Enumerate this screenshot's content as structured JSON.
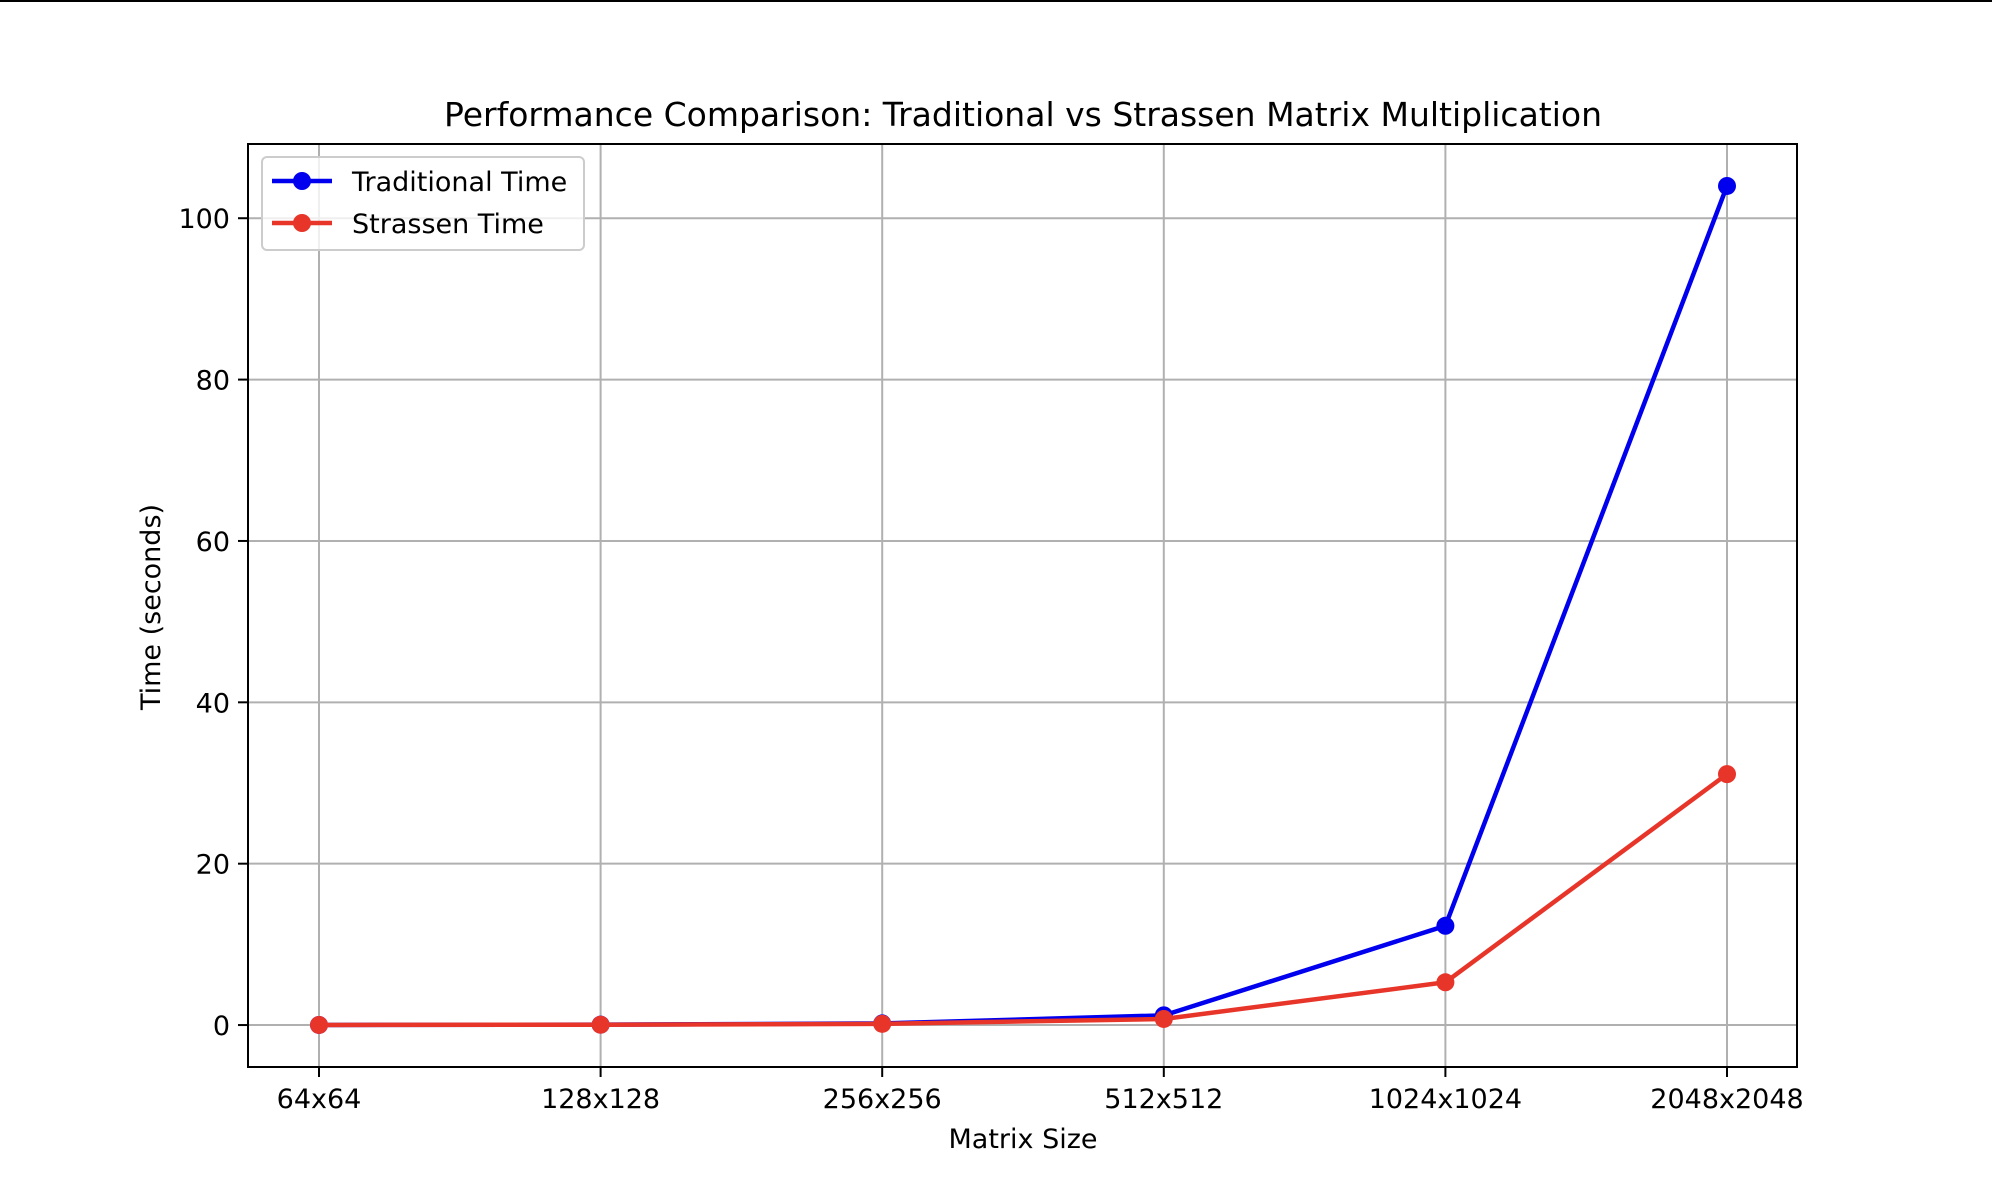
{
  "chart_data": {
    "type": "line",
    "title": "Performance Comparison: Traditional vs Strassen Matrix Multiplication",
    "xlabel": "Matrix Size",
    "ylabel": "Time (seconds)",
    "categories": [
      "64x64",
      "128x128",
      "256x256",
      "512x512",
      "1024x1024",
      "2048x2048"
    ],
    "ylim": [
      -5.2,
      109.2
    ],
    "yticks": [
      0,
      20,
      40,
      60,
      80,
      100
    ],
    "grid": true,
    "legend_position": "top-left",
    "series": [
      {
        "name": "Traditional Time",
        "color": "#0000ee",
        "marker": "circle",
        "values": [
          0.01,
          0.05,
          0.2,
          1.2,
          12.3,
          104.0
        ]
      },
      {
        "name": "Strassen Time",
        "color": "#e8352a",
        "marker": "circle",
        "values": [
          0.01,
          0.04,
          0.15,
          0.75,
          5.3,
          31.1
        ]
      }
    ]
  }
}
